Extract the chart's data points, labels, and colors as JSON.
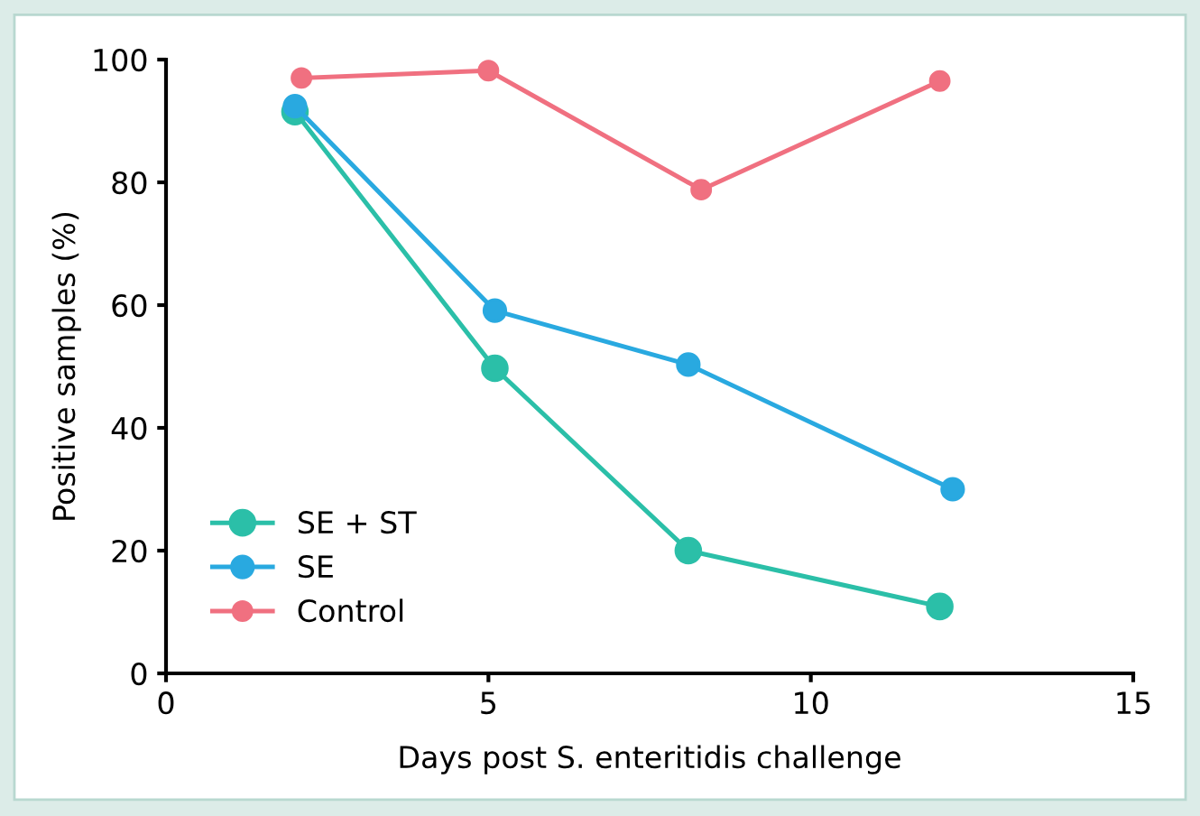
{
  "chart_data": {
    "type": "line",
    "xlabel": "Days post S. enteritidis challenge",
    "ylabel": "Positive samples (%)",
    "xlim": [
      0,
      15
    ],
    "xticks": [
      0,
      5,
      10,
      15
    ],
    "ylim": [
      0,
      100
    ],
    "yticks": [
      0,
      20,
      40,
      60,
      80,
      100
    ],
    "marker": "circle",
    "line_style": "solid",
    "legend": "bottom left",
    "grid": false,
    "series": [
      {
        "name": "SE + ST",
        "color": "#2bbfa8",
        "x": [
          2,
          5.1,
          8.1,
          12
        ],
        "values": [
          91.5,
          49.7,
          20,
          10.9
        ]
      },
      {
        "name": "SE",
        "color": "#29a9e0",
        "x": [
          2,
          5.1,
          8.1,
          12.2
        ],
        "values": [
          92.4,
          59.1,
          50.3,
          30
        ]
      },
      {
        "name": "Control",
        "color": "#f07080",
        "x": [
          2.1,
          5,
          8.3,
          12
        ],
        "values": [
          97,
          98.2,
          78.8,
          96.5
        ]
      }
    ]
  }
}
